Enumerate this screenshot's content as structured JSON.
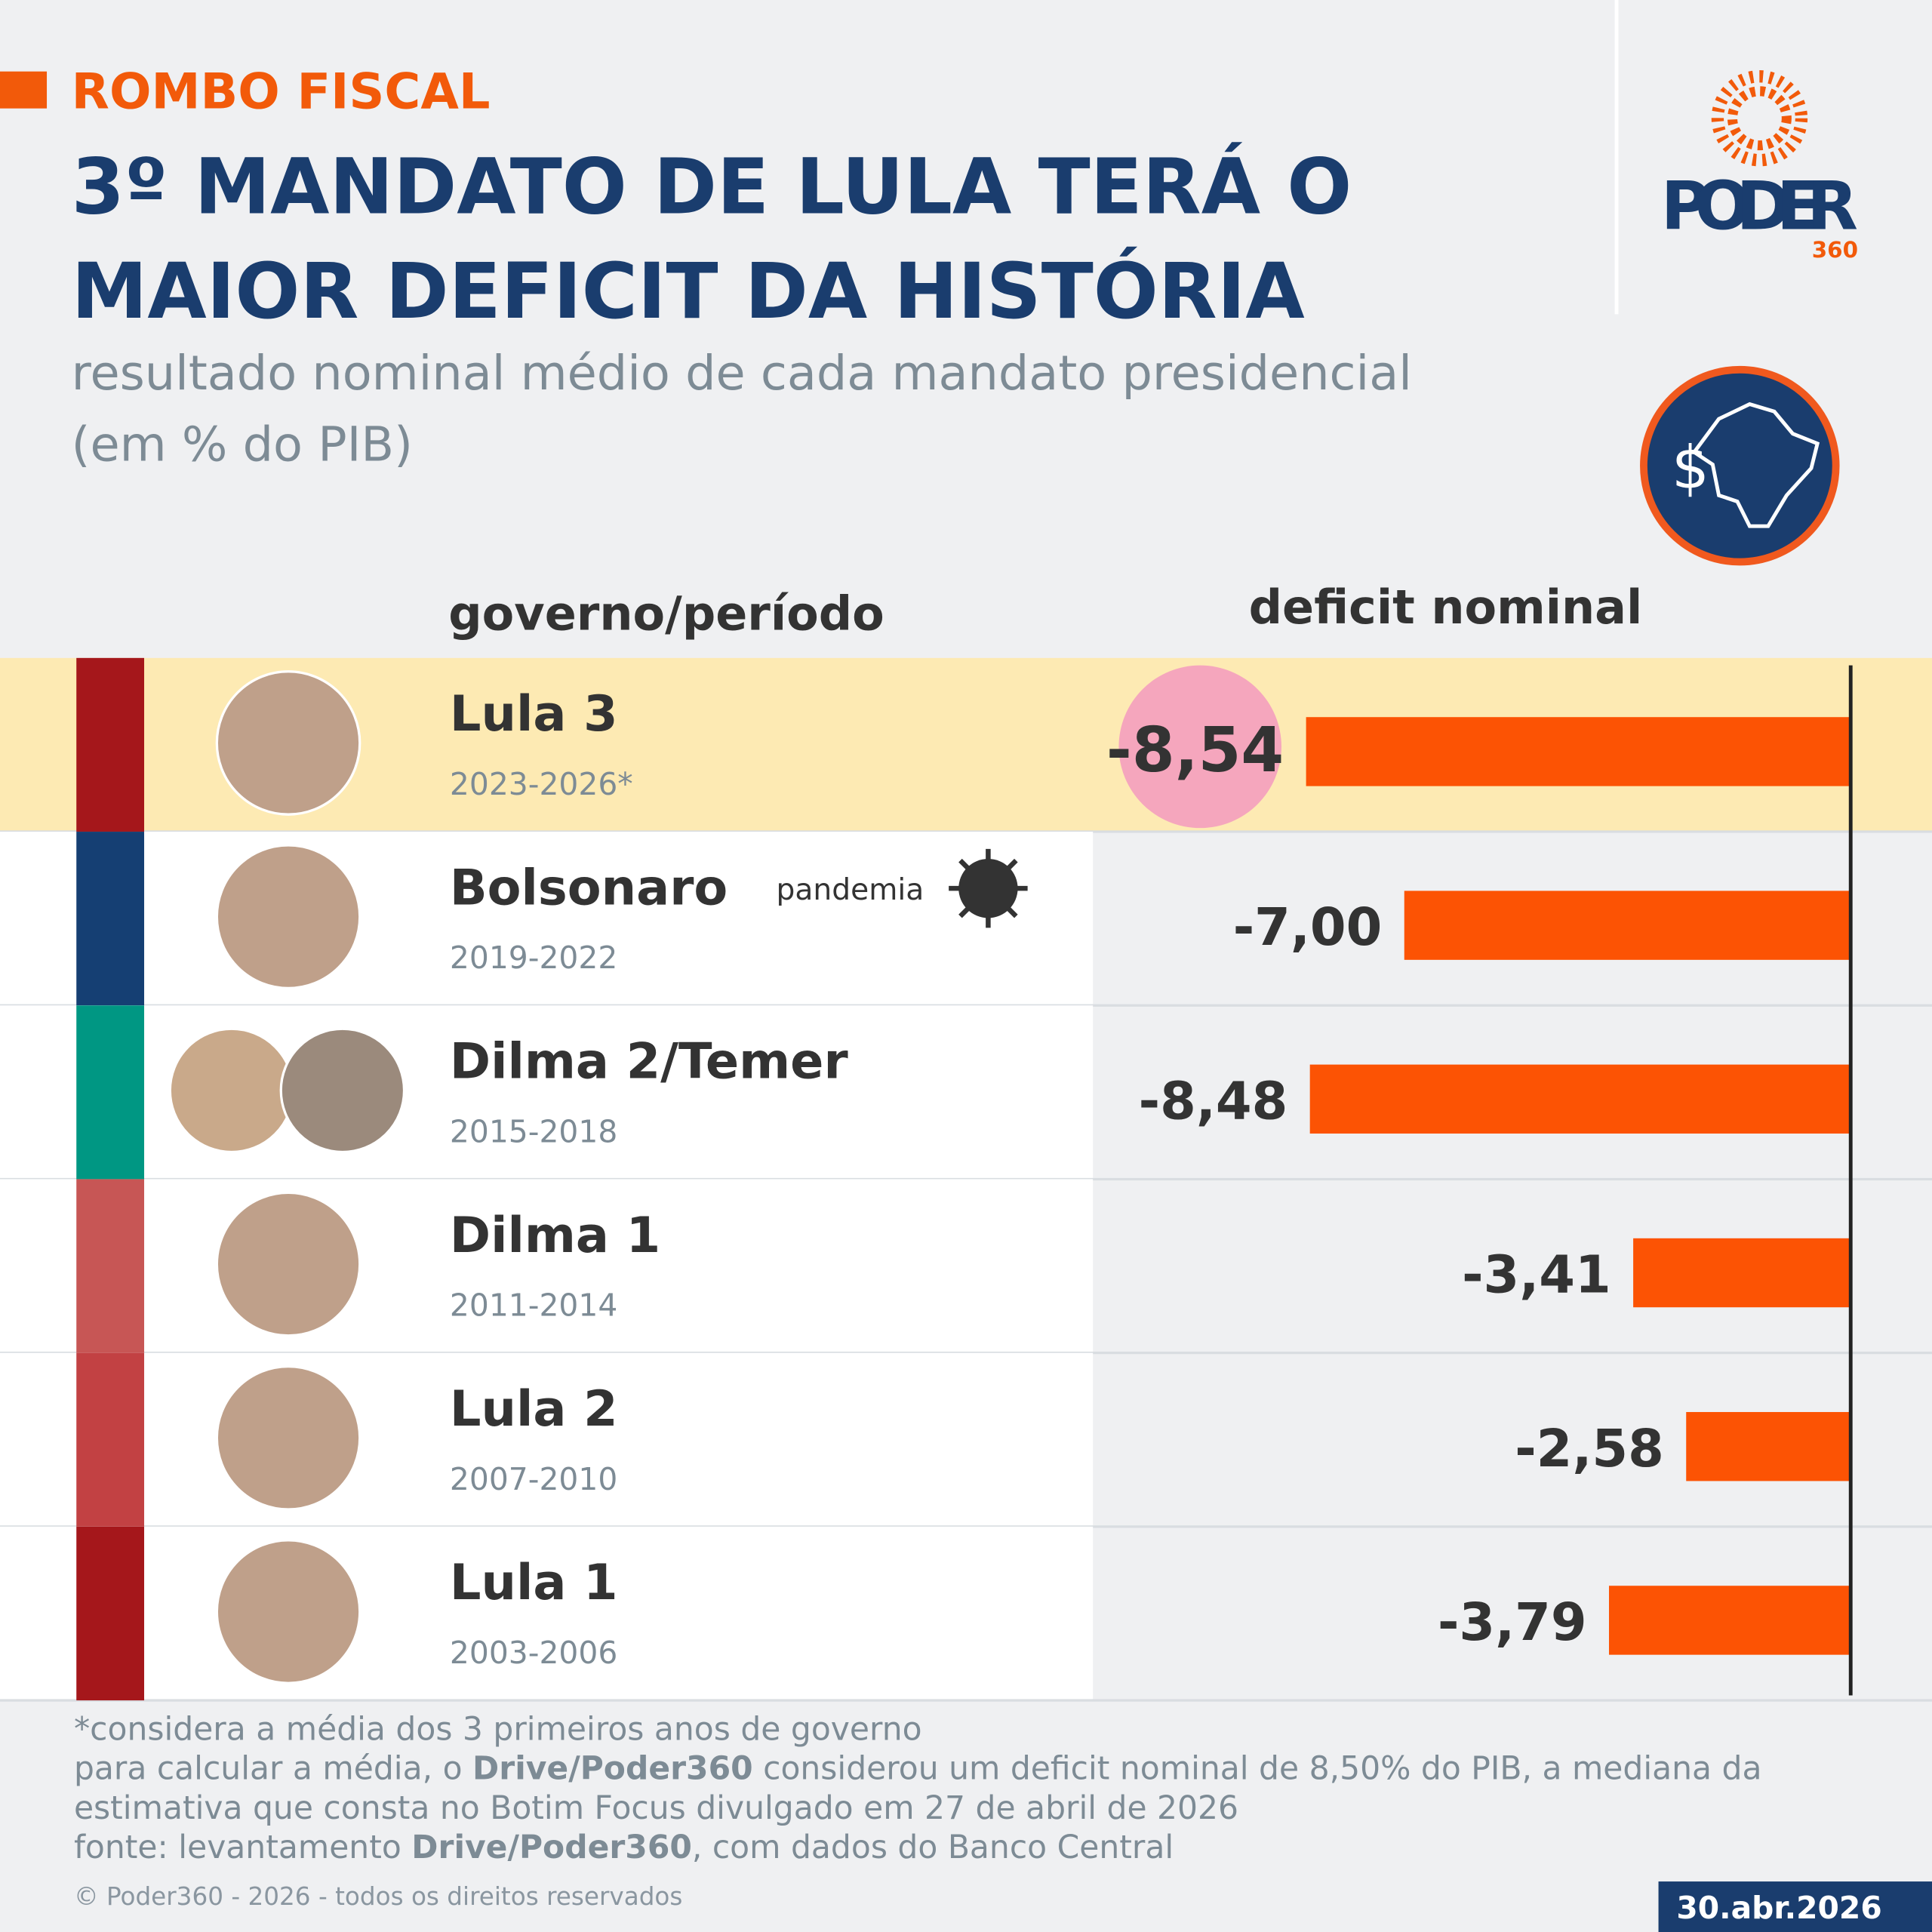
{
  "chart_data": {
    "type": "hbar",
    "kicker": "ROMBO FISCAL",
    "title": [
      "3º MANDATO DE LULA TERÁ O",
      "MAIOR DEFICIT DA HISTÓRIA"
    ],
    "subtitle": [
      "resultado nominal médio de cada mandato presidencial",
      "(em % do PIB)"
    ],
    "category_header": "governo/período",
    "value_header": "deficit nominal",
    "categories": [
      "Lula 3",
      "Bolsonaro",
      "Dilma 2/Temer",
      "Dilma 1",
      "Lula 2",
      "Lula 1"
    ],
    "periods": [
      "2023-2026*",
      "2019-2022",
      " 2015-2018",
      "2011-2014",
      "2007-2010",
      "2003-2006"
    ],
    "values": [
      -8.54,
      -7.0,
      -8.48,
      -3.41,
      -2.58,
      -3.79
    ],
    "value_labels": [
      "-8,54",
      "-7,00",
      "-8,48",
      "-3,41",
      "-2,58",
      "-3,79"
    ],
    "color": "#fc5304",
    "stripe_colors": [
      "#a5171b",
      "#153f73",
      "#009783",
      "#c75655",
      "#c24143",
      "#a5171b"
    ],
    "highlight": 0,
    "annotation": {
      "row": 1,
      "text": "pandemia"
    },
    "notes": [
      [
        "*considera a média dos 3 primeiros anos de governo"
      ],
      [
        "para calcular a média, o ",
        "Drive/Poder360",
        " considerou um deficit nominal de 8,50% do PIB, a mediana da"
      ],
      [
        "estimativa que consta no Botim Focus divulgado em 27 de abril de 2026"
      ],
      [
        "fonte: levantamento ",
        "Drive/Poder360",
        ", com dados do Banco Central"
      ]
    ],
    "copyright": "© Poder360 - 2026 - todos os direitos reservados",
    "date": "30.abr.2026",
    "logo": {
      "name": "PODER",
      "number": "360"
    }
  }
}
